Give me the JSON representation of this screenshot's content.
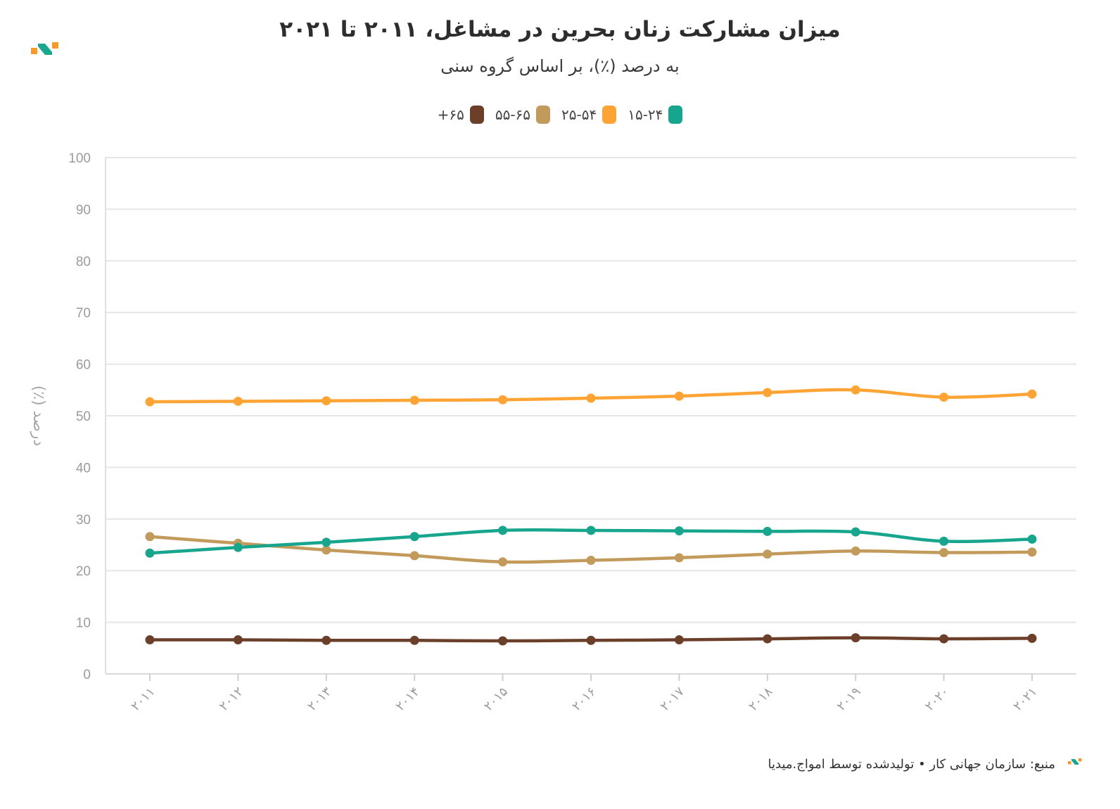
{
  "title": "میزان مشارکت زنان بحرین در مشاغل، ۲۰۱۱ تا ۲۰۲۱",
  "subtitle": "به درصد (٪)، بر اساس گروه سنی",
  "source": "منبع: سازمان جهانی کار • تولیدشده توسط امواج.میدیا",
  "colors": {
    "accent_orange": "#f79a2b",
    "accent_teal": "#1aa68f",
    "grid": "#e6e6e6",
    "axis_text": "#9b9b9b"
  },
  "chart_data": {
    "type": "line",
    "title": "میزان مشارکت زنان بحرین در مشاغل، ۲۰۱۱ تا ۲۰۲۱",
    "subtitle": "به درصد (٪)، بر اساس گروه سنی",
    "xlabel": "",
    "ylabel": "درصد (٪)",
    "ylim": [
      0,
      100
    ],
    "yticks": [
      0,
      10,
      20,
      30,
      40,
      50,
      60,
      70,
      80,
      90,
      100
    ],
    "categories": [
      "۲۰۱۱",
      "۲۰۱۲",
      "۲۰۱۳",
      "۲۰۱۴",
      "۲۰۱۵",
      "۲۰۱۶",
      "۲۰۱۷",
      "۲۰۱۸",
      "۲۰۱۹",
      "۲۰۲۰",
      "۲۰۲۱"
    ],
    "grid": true,
    "legend_position": "top-center",
    "series": [
      {
        "name": "۱۵-۲۴",
        "color": "#17a58e",
        "values": [
          23.4,
          24.5,
          25.5,
          26.6,
          27.8,
          27.8,
          27.7,
          27.6,
          27.5,
          25.7,
          26.1
        ]
      },
      {
        "name": "۲۵-۵۴",
        "color": "#fda435",
        "values": [
          52.7,
          52.8,
          52.9,
          53.0,
          53.1,
          53.4,
          53.8,
          54.5,
          55.0,
          53.6,
          54.2
        ]
      },
      {
        "name": "۵۵-۶۵",
        "color": "#c29a5c",
        "values": [
          26.6,
          25.3,
          24.0,
          22.9,
          21.7,
          22.0,
          22.5,
          23.2,
          23.8,
          23.5,
          23.6
        ]
      },
      {
        "name": "۶۵+",
        "color": "#6b3f2a",
        "values": [
          6.6,
          6.6,
          6.5,
          6.5,
          6.4,
          6.5,
          6.6,
          6.8,
          7.0,
          6.8,
          6.9
        ]
      }
    ]
  }
}
